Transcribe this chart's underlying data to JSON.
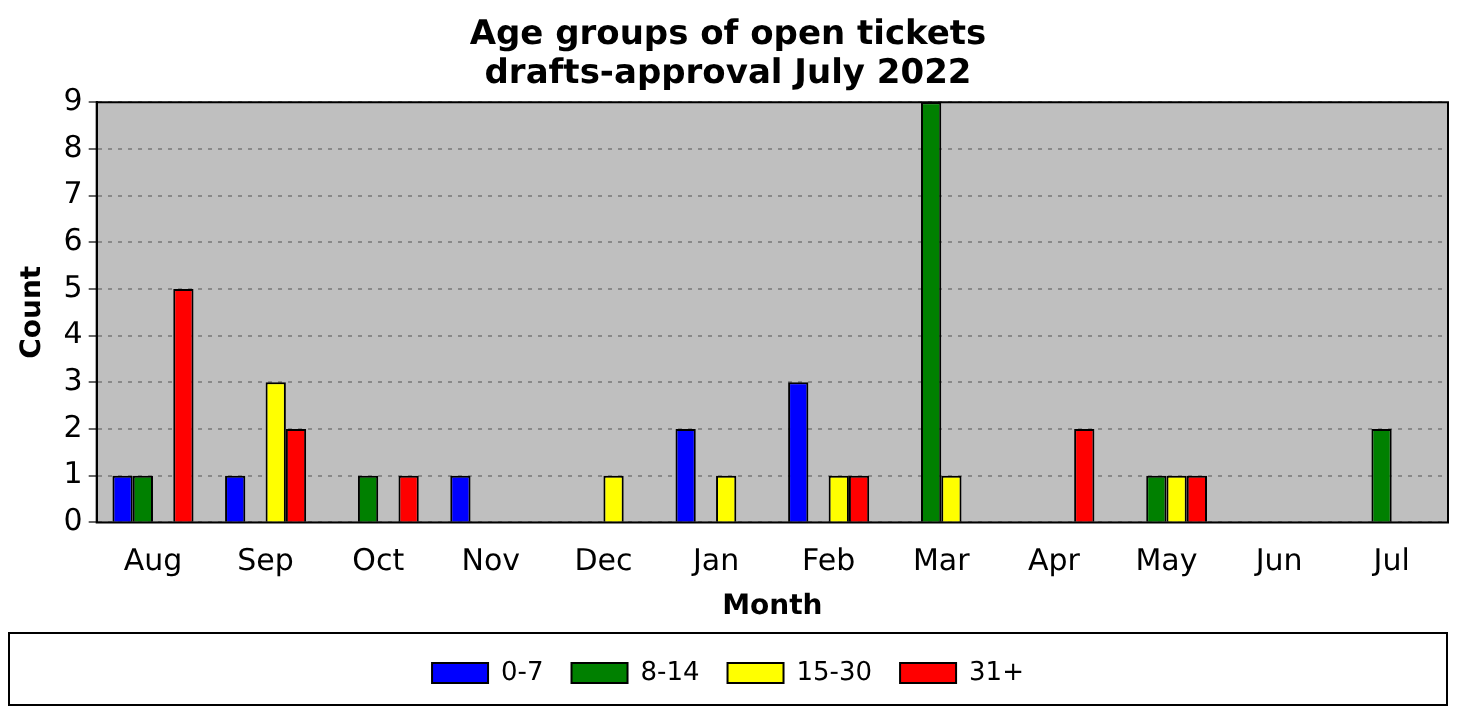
{
  "chart_data": {
    "type": "bar",
    "title": "Age groups of open tickets\ndrafts-approval July 2022",
    "xlabel": "Month",
    "ylabel": "Count",
    "categories": [
      "Aug",
      "Sep",
      "Oct",
      "Nov",
      "Dec",
      "Jan",
      "Feb",
      "Mar",
      "Apr",
      "May",
      "Jun",
      "Jul"
    ],
    "series": [
      {
        "name": "0-7",
        "color": "#0000ff",
        "values": [
          1,
          1,
          0,
          1,
          0,
          2,
          3,
          0,
          0,
          0,
          0,
          0
        ]
      },
      {
        "name": "8-14",
        "color": "#008000",
        "values": [
          1,
          0,
          1,
          0,
          0,
          0,
          0,
          9,
          0,
          1,
          0,
          2
        ]
      },
      {
        "name": "15-30",
        "color": "#ffff00",
        "values": [
          0,
          3,
          0,
          0,
          1,
          1,
          1,
          1,
          0,
          1,
          0,
          0
        ]
      },
      {
        "name": "31+",
        "color": "#ff0000",
        "values": [
          5,
          2,
          1,
          0,
          0,
          0,
          1,
          0,
          2,
          1,
          0,
          0
        ]
      }
    ],
    "ylim": [
      0,
      9
    ],
    "yticks": [
      0,
      1,
      2,
      3,
      4,
      5,
      6,
      7,
      8,
      9
    ],
    "grid": "y",
    "legend": "bottom"
  }
}
